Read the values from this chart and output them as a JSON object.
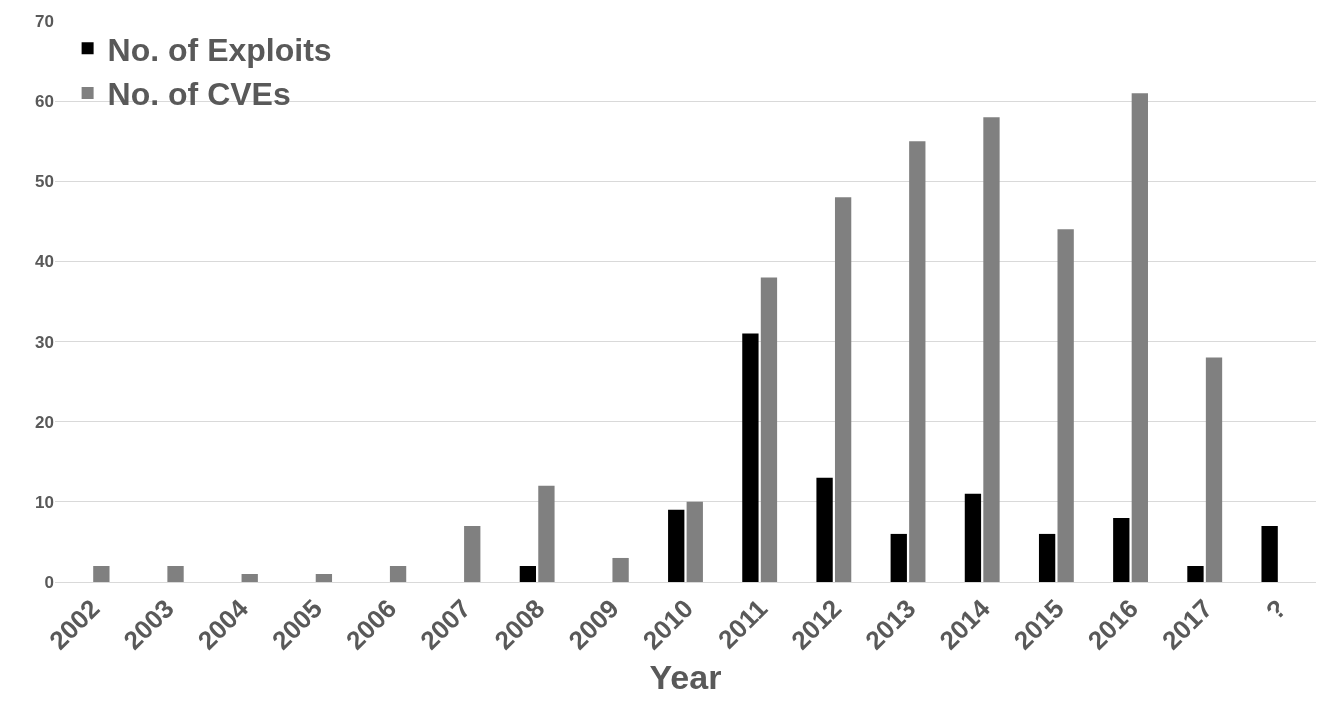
{
  "chart_data": {
    "type": "bar",
    "xlabel": "Year",
    "categories": [
      "2002",
      "2003",
      "2004",
      "2005",
      "2006",
      "2007",
      "2008",
      "2009",
      "2010",
      "2011",
      "2012",
      "2013",
      "2014",
      "2015",
      "2016",
      "2017",
      "?"
    ],
    "series": [
      {
        "name": "No. of Exploits",
        "color": "#000000",
        "values": [
          0,
          0,
          0,
          0,
          0,
          0,
          2,
          0,
          9,
          31,
          13,
          6,
          11,
          6,
          8,
          2,
          7
        ]
      },
      {
        "name": "No. of CVEs",
        "color": "#808080",
        "values": [
          2,
          2,
          1,
          1,
          2,
          7,
          12,
          3,
          10,
          38,
          48,
          55,
          58,
          44,
          61,
          28,
          0
        ]
      }
    ],
    "ylim": [
      0,
      70
    ],
    "yticks": [
      0,
      10,
      20,
      30,
      40,
      50,
      60,
      70
    ],
    "grid": "y",
    "legend": "top left"
  }
}
